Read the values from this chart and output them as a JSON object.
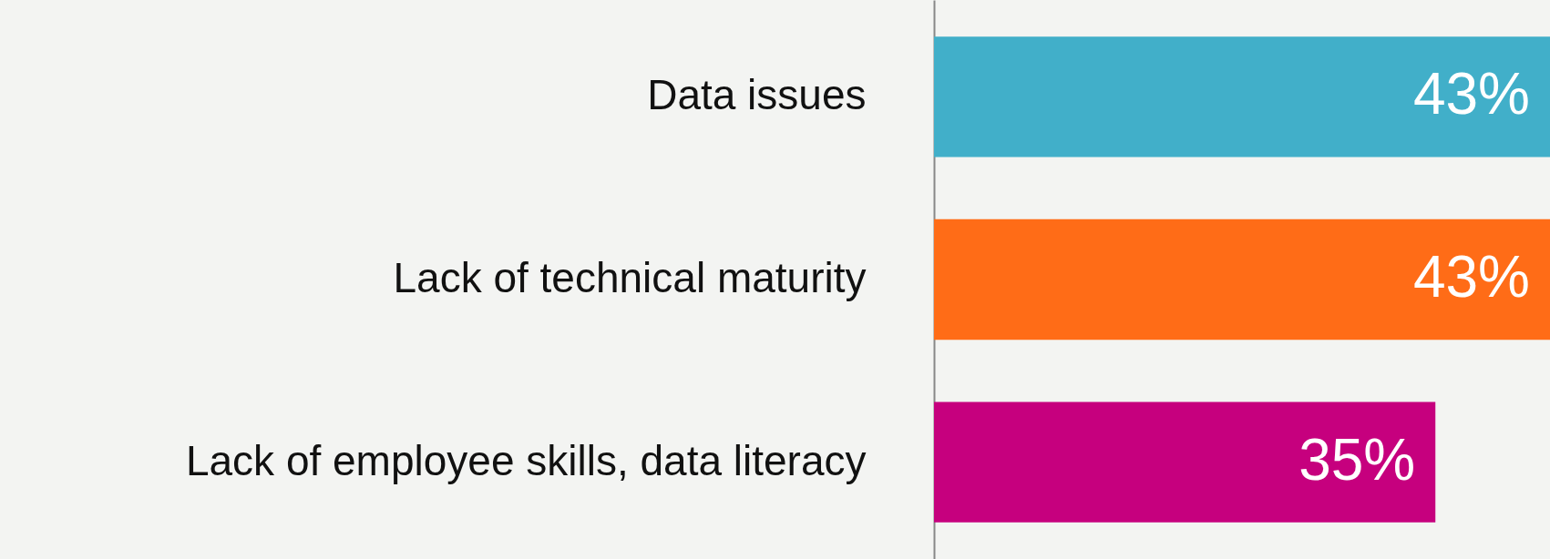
{
  "chart_data": {
    "type": "bar",
    "orientation": "horizontal",
    "categories": [
      "Data issues",
      "Lack of technical maturity",
      "Lack of employee skills, data literacy"
    ],
    "values": [
      43,
      43,
      35
    ],
    "colors": [
      "#41afc9",
      "#ff6c17",
      "#c6007e"
    ],
    "value_labels": [
      "43%",
      "43%",
      "35%"
    ],
    "grid": false
  }
}
